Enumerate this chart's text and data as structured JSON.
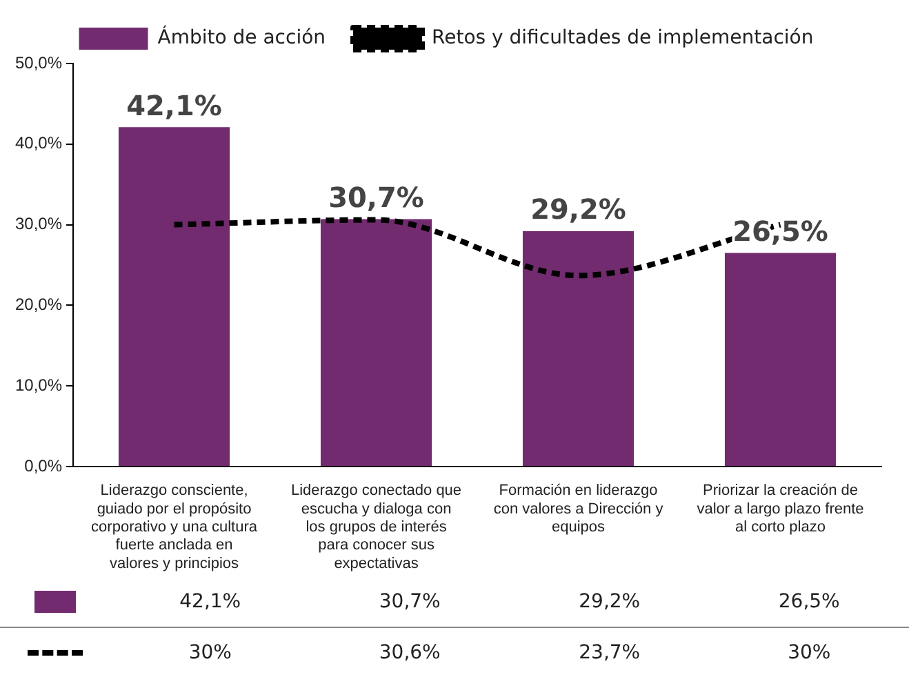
{
  "chart_data": {
    "type": "bar",
    "categories": [
      "Liderazgo consciente, guiado por el propósito corporativo y una cultura fuerte anclada en valores y principios",
      "Liderazgo conectado que escucha y dialoga con los grupos de interés para conocer sus expectativas",
      "Formación en liderazgo con valores a Dirección y equipos",
      "Priorizar la creación de valor a largo plazo frente al corto plazo"
    ],
    "series": [
      {
        "name": "Ámbito de acción",
        "color": "#722b6f",
        "values": [
          42.1,
          30.7,
          29.2,
          26.5
        ],
        "value_labels": [
          "42,1%",
          "30,7%",
          "29,2%",
          "26,5%"
        ]
      },
      {
        "name": "Retos y dificultades de implementación",
        "type": "line",
        "color": "#000000",
        "line_style": "dashed",
        "marker": "none",
        "values": [
          30,
          30.6,
          23.7,
          30
        ],
        "value_labels": [
          "30%",
          "30,6%",
          "23,7%",
          "30%"
        ]
      }
    ],
    "ylim": [
      0,
      50
    ],
    "yticks": [
      {
        "value": 0,
        "label": "0,0%"
      },
      {
        "value": 10,
        "label": "10,0%"
      },
      {
        "value": 20,
        "label": "20,0%"
      },
      {
        "value": 30,
        "label": "30,0%"
      },
      {
        "value": 40,
        "label": "40,0%"
      },
      {
        "value": 50,
        "label": "50,0%"
      }
    ],
    "grid": false,
    "legend": "top"
  }
}
